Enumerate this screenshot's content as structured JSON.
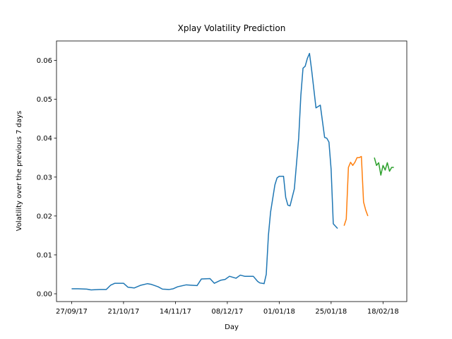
{
  "chart_data": {
    "type": "line",
    "title": "Xplay Volatility Prediction",
    "xlabel": "Day",
    "ylabel": "Volatility over the previous 7 days",
    "xlim": [
      "2017-09-20",
      "2018-03-01"
    ],
    "ylim": [
      -0.002,
      0.065
    ],
    "xticks": [
      {
        "value": "2017-09-27",
        "label": "27/09/17"
      },
      {
        "value": "2017-10-21",
        "label": "21/10/17"
      },
      {
        "value": "2017-11-14",
        "label": "14/11/17"
      },
      {
        "value": "2017-12-08",
        "label": "08/12/17"
      },
      {
        "value": "2018-01-01",
        "label": "01/01/18"
      },
      {
        "value": "2018-01-25",
        "label": "25/01/18"
      },
      {
        "value": "2018-02-18",
        "label": "18/02/18"
      }
    ],
    "yticks": [
      {
        "value": 0,
        "label": "0.00"
      },
      {
        "value": 0.01,
        "label": "0.01"
      },
      {
        "value": 0.02,
        "label": "0.02"
      },
      {
        "value": 0.03,
        "label": "0.03"
      },
      {
        "value": 0.04,
        "label": "0.04"
      },
      {
        "value": 0.05,
        "label": "0.05"
      },
      {
        "value": 0.06,
        "label": "0.06"
      }
    ],
    "series": [
      {
        "color": "#1f77b4",
        "x": [
          "2017-09-27",
          "2017-09-30",
          "2017-10-04",
          "2017-10-06",
          "2017-10-10",
          "2017-10-13",
          "2017-10-15",
          "2017-10-17",
          "2017-10-21",
          "2017-10-23",
          "2017-10-26",
          "2017-10-29",
          "2017-11-01",
          "2017-11-03",
          "2017-11-06",
          "2017-11-08",
          "2017-11-11",
          "2017-11-13",
          "2017-11-15",
          "2017-11-19",
          "2017-11-24",
          "2017-11-26",
          "2017-11-30",
          "2017-12-02",
          "2017-12-05",
          "2017-12-07",
          "2017-12-09",
          "2017-12-12",
          "2017-12-14",
          "2017-12-16",
          "2017-12-20",
          "2017-12-22",
          "2017-12-23",
          "2017-12-25",
          "2017-12-26",
          "2017-12-27",
          "2017-12-28",
          "2017-12-30",
          "2017-12-31",
          "2018-01-01",
          "2018-01-03",
          "2018-01-04",
          "2018-01-05",
          "2018-01-06",
          "2018-01-08",
          "2018-01-10",
          "2018-01-11",
          "2018-01-12",
          "2018-01-13",
          "2018-01-14",
          "2018-01-15",
          "2018-01-16",
          "2018-01-18",
          "2018-01-20",
          "2018-01-22",
          "2018-01-23",
          "2018-01-24",
          "2018-01-25",
          "2018-01-26",
          "2018-01-28"
        ],
        "values": [
          0.0013,
          0.0013,
          0.0012,
          0.001,
          0.0011,
          0.0011,
          0.0022,
          0.0027,
          0.0027,
          0.0017,
          0.0015,
          0.0022,
          0.0026,
          0.0024,
          0.0018,
          0.0012,
          0.0011,
          0.0013,
          0.0018,
          0.0023,
          0.0021,
          0.0038,
          0.0039,
          0.0027,
          0.0035,
          0.0037,
          0.0045,
          0.004,
          0.0048,
          0.0045,
          0.0045,
          0.0032,
          0.0028,
          0.0026,
          0.005,
          0.015,
          0.021,
          0.028,
          0.0298,
          0.0302,
          0.0302,
          0.0248,
          0.0228,
          0.0226,
          0.027,
          0.04,
          0.051,
          0.058,
          0.0585,
          0.0605,
          0.0618,
          0.0575,
          0.0478,
          0.0485,
          0.0402,
          0.04,
          0.039,
          0.032,
          0.018,
          0.0168
        ]
      },
      {
        "color": "#ff7f0e",
        "x": [
          "2018-01-31",
          "2018-02-01",
          "2018-02-02",
          "2018-02-03",
          "2018-02-04",
          "2018-02-05",
          "2018-02-06",
          "2018-02-07",
          "2018-02-08",
          "2018-02-09",
          "2018-02-10",
          "2018-02-11"
        ],
        "values": [
          0.0175,
          0.0192,
          0.0325,
          0.0338,
          0.033,
          0.0338,
          0.035,
          0.035,
          0.0353,
          0.0236,
          0.0215,
          0.02
        ]
      },
      {
        "color": "#2ca02c",
        "x": [
          "2018-02-14",
          "2018-02-15",
          "2018-02-16",
          "2018-02-17",
          "2018-02-18",
          "2018-02-19",
          "2018-02-20",
          "2018-02-21",
          "2018-02-22",
          "2018-02-23"
        ],
        "values": [
          0.035,
          0.033,
          0.0337,
          0.0305,
          0.033,
          0.0318,
          0.0337,
          0.0315,
          0.0325,
          0.0325
        ]
      }
    ]
  }
}
